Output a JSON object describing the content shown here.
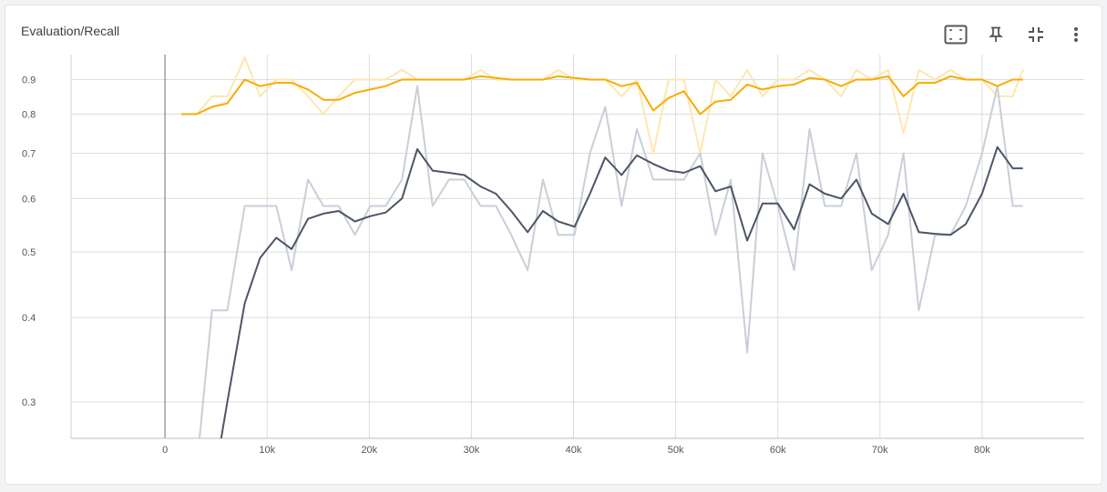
{
  "card": {
    "title": "Evaluation/Recall"
  },
  "toolbar": {
    "icons": [
      "fit-to-data-icon",
      "pin-icon",
      "collapse-icon",
      "more-vert-icon"
    ]
  },
  "colors": {
    "orange": "#f9ab00",
    "orange_raw": "#fde7b1",
    "slate": "#4c5568",
    "slate_raw": "#c9ced8",
    "grid": "#dcdcdc"
  },
  "chart_data": {
    "type": "line",
    "title": "",
    "xlabel": "",
    "ylabel": "",
    "y_scale": "log",
    "xlim": [
      -9200,
      90000
    ],
    "ylim": [
      0.265,
      0.98
    ],
    "x_ticks": [
      0,
      10000,
      20000,
      30000,
      40000,
      50000,
      60000,
      70000,
      80000
    ],
    "x_tick_labels": [
      "0",
      "10k",
      "20k",
      "30k",
      "40k",
      "50k",
      "60k",
      "70k",
      "80k"
    ],
    "y_ticks": [
      0.3,
      0.4,
      0.5,
      0.6,
      0.7,
      0.8,
      0.9
    ],
    "y_tick_labels": [
      "0.3",
      "0.4",
      "0.5",
      "0.6",
      "0.7",
      "0.8",
      "0.9"
    ],
    "grid": true,
    "x": [
      1600,
      3100,
      4600,
      6100,
      7800,
      9300,
      10900,
      12400,
      14000,
      15500,
      17000,
      18600,
      20100,
      21600,
      23200,
      24700,
      26200,
      27800,
      29300,
      30900,
      32400,
      33900,
      35500,
      37000,
      38500,
      40100,
      41600,
      43100,
      44700,
      46200,
      47800,
      49300,
      50800,
      52400,
      53900,
      55400,
      57000,
      58500,
      60000,
      61600,
      63100,
      64600,
      66200,
      67700,
      69200,
      70800,
      72300,
      73800,
      75400,
      76900,
      78400,
      80000,
      81500,
      83000,
      84000
    ],
    "series": [
      {
        "smoothed": [
          0.8,
          0.8,
          0.82,
          0.83,
          0.9,
          0.88,
          0.89,
          0.89,
          0.87,
          0.84,
          0.84,
          0.86,
          0.87,
          0.88,
          0.9,
          0.9,
          0.9,
          0.9,
          0.9,
          0.91,
          0.905,
          0.9,
          0.9,
          0.9,
          0.91,
          0.905,
          0.9,
          0.9,
          0.88,
          0.89,
          0.81,
          0.845,
          0.865,
          0.8,
          0.835,
          0.84,
          0.885,
          0.87,
          0.88,
          0.885,
          0.905,
          0.9,
          0.88,
          0.9,
          0.9,
          0.91,
          0.85,
          0.89,
          0.89,
          0.91,
          0.9,
          0.9,
          0.88,
          0.9,
          0.9
        ],
        "raw": [
          0.8,
          0.8,
          0.85,
          0.85,
          0.97,
          0.85,
          0.9,
          0.9,
          0.85,
          0.8,
          0.85,
          0.9,
          0.9,
          0.9,
          0.93,
          0.9,
          0.9,
          0.9,
          0.9,
          0.93,
          0.9,
          0.9,
          0.9,
          0.9,
          0.93,
          0.9,
          0.9,
          0.9,
          0.85,
          0.9,
          0.7,
          0.9,
          0.9,
          0.7,
          0.9,
          0.85,
          0.93,
          0.85,
          0.9,
          0.9,
          0.93,
          0.9,
          0.85,
          0.93,
          0.9,
          0.93,
          0.75,
          0.93,
          0.9,
          0.93,
          0.9,
          0.9,
          0.85,
          0.85,
          0.93
        ]
      },
      {
        "smoothed": [
          0.24,
          0.24,
          0.22,
          0.3,
          0.42,
          0.49,
          0.525,
          0.505,
          0.56,
          0.57,
          0.575,
          0.555,
          0.565,
          0.572,
          0.6,
          0.71,
          0.66,
          0.655,
          0.65,
          0.625,
          0.61,
          0.575,
          0.535,
          0.575,
          0.555,
          0.545,
          0.61,
          0.69,
          0.65,
          0.695,
          0.675,
          0.66,
          0.655,
          0.67,
          0.615,
          0.625,
          0.52,
          0.59,
          0.59,
          0.54,
          0.63,
          0.61,
          0.6,
          0.64,
          0.57,
          0.55,
          0.61,
          0.535,
          0.532,
          0.53,
          0.55,
          0.61,
          0.715,
          0.665,
          0.665
        ],
        "raw": [
          0.24,
          0.24,
          0.41,
          0.41,
          0.585,
          0.585,
          0.585,
          0.47,
          0.64,
          0.585,
          0.585,
          0.53,
          0.585,
          0.585,
          0.64,
          0.88,
          0.585,
          0.64,
          0.64,
          0.585,
          0.585,
          0.53,
          0.47,
          0.64,
          0.53,
          0.53,
          0.7,
          0.82,
          0.585,
          0.76,
          0.64,
          0.64,
          0.64,
          0.7,
          0.53,
          0.64,
          0.355,
          0.7,
          0.585,
          0.47,
          0.76,
          0.585,
          0.585,
          0.7,
          0.47,
          0.53,
          0.7,
          0.41,
          0.53,
          0.53,
          0.585,
          0.7,
          0.88,
          0.585,
          0.585
        ]
      }
    ]
  }
}
